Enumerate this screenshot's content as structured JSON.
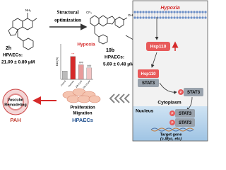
{
  "left": {
    "compound_a": {
      "name": "2h",
      "cell": "HPAECs:",
      "ic50": "21.09 ± 0.89 μM"
    },
    "arrow_label": {
      "line1": "Structural",
      "line2": "optimization"
    },
    "compound_b": {
      "name": "10b",
      "cell": "HPAECs:",
      "ic50": "5.69 ± 0.48 μM"
    },
    "mini_chart": {
      "title": "Hypoxia",
      "y_label": "EdU(%)",
      "categories": [
        "Control",
        "Hypoxia",
        "10b-5 μM",
        "10b-10 μM"
      ],
      "values": [
        8,
        22,
        14,
        11
      ],
      "ylim": [
        0,
        30
      ],
      "annotations": [
        null,
        "***",
        "###",
        "###"
      ]
    },
    "outcome": {
      "vascular": {
        "line1": "Vascular",
        "line2": "Remodeling"
      },
      "disease": "PAH"
    },
    "cells": {
      "line1": "Proliferation",
      "line2": "Migration",
      "name": "HPAECs"
    }
  },
  "mechanism": {
    "stimulus": "Hypoxia",
    "protein": "Hsp110",
    "complex": {
      "top": "Hsp110",
      "bottom": "STAT3"
    },
    "phospho": {
      "p": "P",
      "name": "STAT3"
    },
    "cytoplasm": "Cytoplasm",
    "nucleus": "Nucleus",
    "dimer": {
      "p1": "P",
      "s1": "STAT3",
      "p2": "P",
      "s2": "STAT3"
    },
    "target": {
      "line1": "Target gene",
      "line2": "(c-Myc, etc)"
    }
  }
}
